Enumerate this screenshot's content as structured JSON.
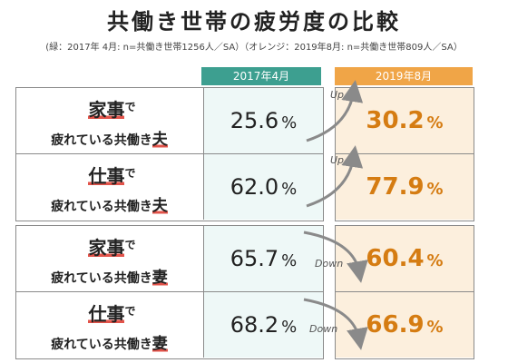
{
  "title": "共働き世帯の疲労度の比較",
  "subtitle": "(緑：2017年 4月: n=共働き世帯1256人／SA）（オレンジ：2019年8月: n=共働き世帯809人／SA）",
  "columns": [
    "2017年4月",
    "2019年8月"
  ],
  "rows": [
    {
      "big": "家事",
      "de": "で",
      "small": "疲れている共働き",
      "end": "夫",
      "v2017": "25.6",
      "v2019": "30.2",
      "change": "Up"
    },
    {
      "big": "仕事",
      "de": "で",
      "small": "疲れている共働き",
      "end": "夫",
      "v2017": "62.0",
      "v2019": "77.9",
      "change": "Up"
    },
    {
      "big": "家事",
      "de": "で",
      "small": "疲れている共働き",
      "end": "妻",
      "v2017": "65.7",
      "v2019": "60.4",
      "change": "Down"
    },
    {
      "big": "仕事",
      "de": "で",
      "small": "疲れている共働き",
      "end": "妻",
      "v2017": "68.2",
      "v2019": "66.9",
      "change": "Down"
    }
  ],
  "unit": "%",
  "colors": {
    "green": "#3d9f90",
    "green_bg": "#eef8f7",
    "orange": "#f0a547",
    "orange_bg": "#fcefdd",
    "orange_text": "#d57c12",
    "underline": "#e2534a"
  },
  "chart_data": {
    "type": "table",
    "title": "共働き世帯の疲労度の比較",
    "categories": [
      "家事で疲れている共働き夫",
      "仕事で疲れている共働き夫",
      "家事で疲れている共働き妻",
      "仕事で疲れている共働き妻"
    ],
    "series": [
      {
        "name": "2017年4月",
        "values": [
          25.6,
          62.0,
          65.7,
          68.2
        ]
      },
      {
        "name": "2019年8月",
        "values": [
          30.2,
          77.9,
          60.4,
          66.9
        ]
      }
    ],
    "annotations": [
      "Up",
      "Up",
      "Down",
      "Down"
    ],
    "unit": "%"
  }
}
